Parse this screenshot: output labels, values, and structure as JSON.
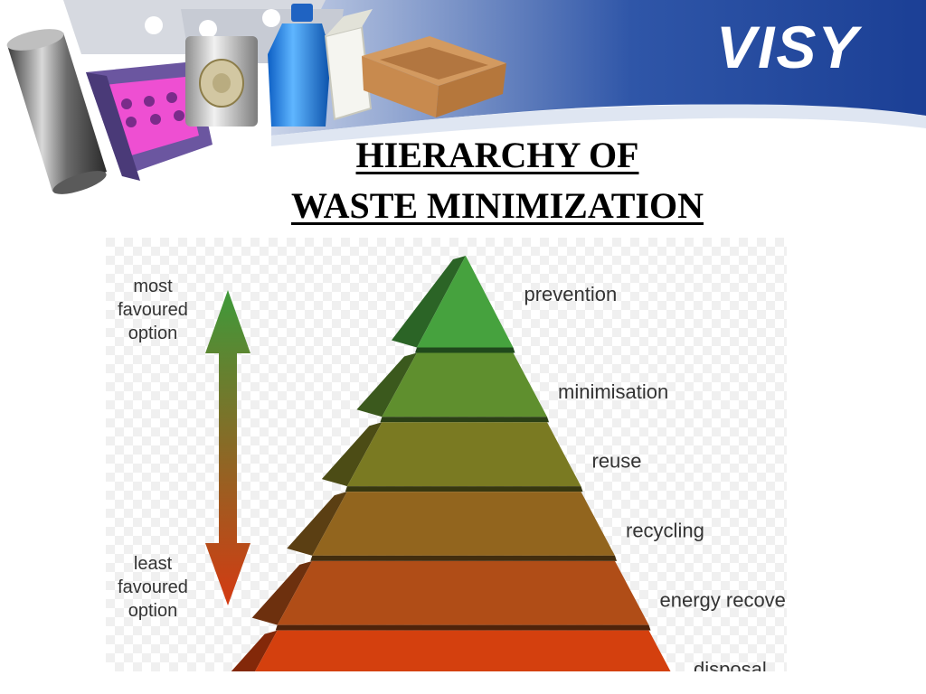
{
  "header": {
    "logo": "VISY",
    "title_line1": "HIERARCHY OF",
    "title_line2": "WASTE MINIMIZATION"
  },
  "diagram": {
    "axis_top_label": [
      "most",
      "favoured",
      "option"
    ],
    "axis_bottom_label": [
      "least",
      "favoured",
      "option"
    ],
    "levels": [
      {
        "label": "prevention",
        "color": "#46a23e"
      },
      {
        "label": "minimisation",
        "color": "#5f8f2e"
      },
      {
        "label": "reuse",
        "color": "#7a7a22"
      },
      {
        "label": "recycling",
        "color": "#92651e"
      },
      {
        "label": "energy recovery",
        "color": "#b04d17"
      },
      {
        "label": "disposal",
        "color": "#d4400e"
      }
    ],
    "arrow_colors": {
      "top": "#3e9a3a",
      "bottom": "#d43a12"
    }
  }
}
